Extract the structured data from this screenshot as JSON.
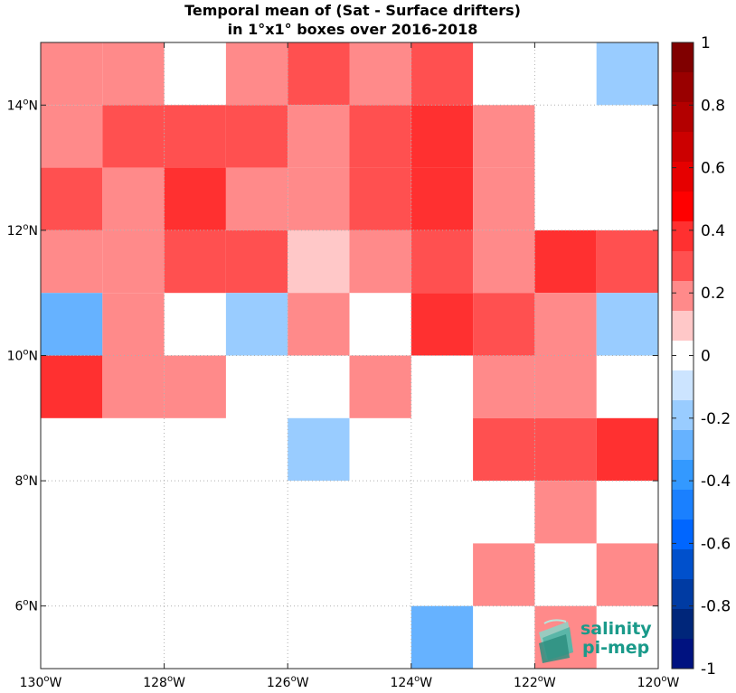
{
  "chart_data": {
    "type": "heatmap",
    "title_line1": "Temporal mean of (Sat - Surface drifters)",
    "title_line2": "in 1°x1° boxes over 2016-2018",
    "x_ticks": [
      {
        "value": -130,
        "deg": "130",
        "dir": "W"
      },
      {
        "value": -128,
        "deg": "128",
        "dir": "W"
      },
      {
        "value": -126,
        "deg": "126",
        "dir": "W"
      },
      {
        "value": -124,
        "deg": "124",
        "dir": "W"
      },
      {
        "value": -122,
        "deg": "122",
        "dir": "W"
      },
      {
        "value": -120,
        "deg": "120",
        "dir": "W"
      }
    ],
    "y_ticks": [
      {
        "value": 6,
        "deg": "6",
        "dir": "N"
      },
      {
        "value": 8,
        "deg": "8",
        "dir": "N"
      },
      {
        "value": 10,
        "deg": "10",
        "dir": "N"
      },
      {
        "value": 12,
        "deg": "12",
        "dir": "N"
      },
      {
        "value": 14,
        "deg": "14",
        "dir": "N"
      }
    ],
    "xlim": [
      -130,
      -120
    ],
    "ylim": [
      5,
      15
    ],
    "colorbar_range": [
      -1,
      1
    ],
    "colorbar_ticks": [
      "1",
      "0.8",
      "0.6",
      "0.4",
      "0.2",
      "0",
      "-0.2",
      "-0.4",
      "-0.6",
      "-0.8",
      "-1"
    ],
    "colorbar_colors": [
      "#800000",
      "#990000",
      "#b30000",
      "#cc0000",
      "#e60000",
      "#ff0000",
      "#ff3030",
      "#ff5050",
      "#ff8a8a",
      "#ffc8c8",
      "#ffffff",
      "#cce4ff",
      "#99ccff",
      "#66b2ff",
      "#3399ff",
      "#1a80ff",
      "#0066ff",
      "#0050cc",
      "#003ba3",
      "#00267a",
      "#001280"
    ],
    "grid": true,
    "row_lat_top": [
      15,
      14,
      13,
      12,
      11,
      10,
      9,
      8,
      7,
      6
    ],
    "col_lon_left": [
      -130,
      -129,
      -128,
      -127,
      -126,
      -125,
      -124,
      -123,
      -122,
      -121
    ],
    "values": [
      [
        0.15,
        0.15,
        null,
        0.15,
        0.25,
        0.15,
        0.25,
        null,
        null,
        -0.15
      ],
      [
        0.15,
        0.25,
        0.25,
        0.25,
        0.15,
        0.25,
        0.35,
        0.15,
        null,
        null
      ],
      [
        0.25,
        0.15,
        0.35,
        0.15,
        0.15,
        0.25,
        0.35,
        0.15,
        null,
        null
      ],
      [
        0.15,
        0.15,
        0.25,
        0.25,
        0.05,
        0.15,
        0.25,
        0.15,
        0.35,
        0.25
      ],
      [
        -0.25,
        0.15,
        null,
        -0.15,
        0.15,
        null,
        0.35,
        0.25,
        0.15,
        -0.15
      ],
      [
        0.35,
        0.15,
        0.15,
        null,
        null,
        0.15,
        null,
        0.15,
        0.15,
        null
      ],
      [
        null,
        null,
        null,
        null,
        -0.15,
        null,
        null,
        0.25,
        0.25,
        0.35
      ],
      [
        null,
        null,
        null,
        null,
        null,
        null,
        null,
        null,
        0.15,
        null
      ],
      [
        null,
        null,
        null,
        null,
        null,
        null,
        null,
        0.15,
        null,
        0.15
      ],
      [
        null,
        null,
        null,
        null,
        null,
        null,
        -0.25,
        null,
        0.15,
        null
      ]
    ]
  },
  "logo": {
    "line1": "salinity",
    "line2": "pi-mep",
    "color": "#1a9a8a"
  }
}
